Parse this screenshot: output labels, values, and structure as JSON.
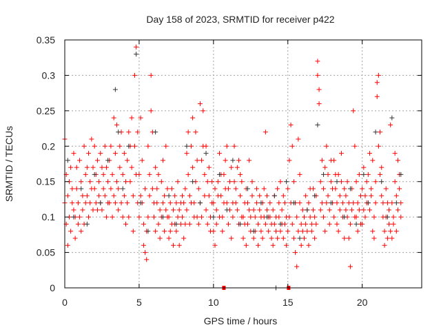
{
  "chart_data": {
    "type": "scatter",
    "title": "Day 158 of 2023, SRMTID for receiver p422",
    "xlabel": "GPS time / hours",
    "ylabel": "SRMTID / TECUs",
    "xlim": [
      0,
      24
    ],
    "ylim": [
      0,
      0.35
    ],
    "xticks": [
      0,
      5,
      10,
      15,
      20
    ],
    "xtick_labels": [
      "0",
      "5",
      "10",
      "15",
      "20"
    ],
    "yticks": [
      0,
      0.05,
      0.1,
      0.15,
      0.2,
      0.25,
      0.3,
      0.35
    ],
    "ytick_labels": [
      "0",
      "0.05",
      "0.1",
      "0.15",
      "0.2",
      "0.25",
      "0.3",
      "0.35"
    ],
    "grid": true,
    "legend": "none",
    "colors": {
      "primary": "#ff0000",
      "secondary": "#333333"
    },
    "series": [
      {
        "name": "red",
        "color": "#ff0000",
        "marker": "plus",
        "x_start": 0,
        "x_step": 0.1,
        "y": [
          [
            0.21,
            0.12
          ],
          [
            0.09,
            0.16
          ],
          [
            0.13,
            0.06
          ],
          [
            0.15,
            0.1
          ],
          [
            0.17,
            0.08
          ],
          [
            0.12,
            0.14
          ],
          [
            0.19,
            0.11
          ],
          [
            0.1,
            0.07
          ],
          [
            0.14,
            0.17
          ],
          [
            0.12,
            0.09
          ],
          [
            0.18,
            0.1
          ],
          [
            0.08,
            0.15
          ],
          [
            0.13,
            0.11
          ],
          [
            0.2,
            0.09
          ],
          [
            0.12,
            0.16
          ],
          [
            0.17,
            0.13
          ],
          [
            0.1,
            0.19
          ],
          [
            0.15,
            0.12
          ],
          [
            0.21,
            0.14
          ],
          [
            0.11,
            0.17
          ],
          [
            0.14,
            0.2
          ],
          [
            0.12,
            0.16
          ],
          [
            0.18,
            0.11
          ],
          [
            0.15,
            0.13
          ],
          [
            0.19,
            0.12
          ],
          [
            0.11,
            0.17
          ],
          [
            0.16,
            0.14
          ],
          [
            0.13,
            0.2
          ],
          [
            0.17,
            0.1
          ],
          [
            0.15,
            0.12
          ],
          [
            0.12,
            0.18
          ],
          [
            0.2,
            0.14
          ],
          [
            0.16,
            0.1
          ],
          [
            0.24,
            0.13
          ],
          [
            0.19,
            0.12
          ],
          [
            0.23,
            0.15
          ],
          [
            0.14,
            0.11
          ],
          [
            0.2,
            0.17
          ],
          [
            0.12,
            0.22
          ],
          [
            0.16,
            0.1
          ],
          [
            0.13,
            0.19
          ],
          [
            0.09,
            0.15
          ],
          [
            0.18,
            0.12
          ],
          [
            0.22,
            0.1
          ],
          [
            0.15,
            0.2
          ],
          [
            0.24,
            0.17
          ],
          [
            0.13,
            0.08
          ],
          [
            0.3,
            0.2
          ],
          [
            0.34,
            0.16
          ],
          [
            0.12,
            0.22
          ],
          [
            0.16,
            0.1
          ],
          [
            0.24,
            0.13
          ],
          [
            0.12,
            0.18
          ],
          [
            0.09,
            0.06
          ],
          [
            0.14,
            0.05
          ],
          [
            0.04,
            0.08
          ],
          [
            0.2,
            0.1
          ],
          [
            0.16,
            0.13
          ],
          [
            0.3,
            0.25
          ],
          [
            0.22,
            0.14
          ],
          [
            0.12,
            0.1
          ],
          [
            0.17,
            0.08
          ],
          [
            0.14,
            0.12
          ],
          [
            0.09,
            0.16
          ],
          [
            0.11,
            0.07
          ],
          [
            0.15,
            0.1
          ],
          [
            0.12,
            0.18
          ],
          [
            0.08,
            0.13
          ],
          [
            0.2,
            0.11
          ],
          [
            0.1,
            0.14
          ],
          [
            0.07,
            0.1
          ],
          [
            0.12,
            0.08
          ],
          [
            0.09,
            0.14
          ],
          [
            0.11,
            0.06
          ],
          [
            0.13,
            0.09
          ],
          [
            0.08,
            0.12
          ],
          [
            0.1,
            0.15
          ],
          [
            0.06,
            0.11
          ],
          [
            0.12,
            0.09
          ],
          [
            0.1,
            0.13
          ],
          [
            0.07,
            0.12
          ],
          [
            0.14,
            0.09
          ],
          [
            0.19,
            0.11
          ],
          [
            0.22,
            0.16
          ],
          [
            0.13,
            0.09
          ],
          [
            0.2,
            0.12
          ],
          [
            0.17,
            0.24
          ],
          [
            0.12,
            0.1
          ],
          [
            0.22,
            0.15
          ],
          [
            0.1,
            0.18
          ],
          [
            0.14,
            0.09
          ],
          [
            0.26,
            0.12
          ],
          [
            0.18,
            0.1
          ],
          [
            0.25,
            0.2
          ],
          [
            0.13,
            0.16
          ],
          [
            0.2,
            0.11
          ],
          [
            0.15,
            0.09
          ],
          [
            0.17,
            0.13
          ],
          [
            0.1,
            0.08
          ],
          [
            0.12,
            0.15
          ],
          [
            0.08,
            0.12
          ],
          [
            0.14,
            0.06
          ],
          [
            0.11,
            0.09
          ],
          [
            0.15,
            0.13
          ],
          [
            0.19,
            0.1
          ],
          [
            0.13,
            0.16
          ],
          [
            0.1,
            0.08
          ],
          [
            0.16,
            0.12
          ],
          [
            0.18,
            0.14
          ],
          [
            0.12,
            0.2
          ],
          [
            0.09,
            0.14
          ],
          [
            0.15,
            0.11
          ],
          [
            0.17,
            0.07
          ],
          [
            0.12,
            0.1
          ],
          [
            0.2,
            0.15
          ],
          [
            0.14,
            0.12
          ],
          [
            0.11,
            0.17
          ],
          [
            0.18,
            0.09
          ],
          [
            0.13,
            0.16
          ],
          [
            0.15,
            0.1
          ],
          [
            0.1,
            0.07
          ],
          [
            0.12,
            0.09
          ],
          [
            0.14,
            0.06
          ],
          [
            0.09,
            0.12
          ],
          [
            0.18,
            0.11
          ],
          [
            0.1,
            0.08
          ],
          [
            0.13,
            0.15
          ],
          [
            0.11,
            0.07
          ],
          [
            0.08,
            0.1
          ],
          [
            0.12,
            0.14
          ],
          [
            0.09,
            0.06
          ],
          [
            0.11,
            0.13
          ],
          [
            0.1,
            0.08
          ],
          [
            0.12,
            0.07
          ],
          [
            0.14,
            0.1
          ],
          [
            0.22,
            0.09
          ],
          [
            0.11,
            0.13
          ],
          [
            0.08,
            0.1
          ],
          [
            0.1,
            0.12
          ],
          [
            0.07,
            0.09
          ],
          [
            0.11,
            0.06
          ],
          [
            0.09,
            0.13
          ],
          [
            0.1,
            0.08
          ],
          [
            0.14,
            0.07
          ],
          [
            0.12,
            0.1
          ],
          [
            0.08,
            0.15
          ],
          [
            0.11,
            0.09
          ],
          [
            0.13,
            0.07
          ],
          [
            0.09,
            0.12
          ],
          [
            0.1,
            0.06
          ],
          [
            0.14,
            0.08
          ],
          [
            0.18,
            0.1
          ],
          [
            0.23,
            0.12
          ],
          [
            0.2,
            0.09
          ],
          [
            0.07,
            0.15
          ],
          [
            0.12,
            0.05
          ],
          [
            0.03,
            0.1
          ],
          [
            0.21,
            0.08
          ],
          [
            0.16,
            0.12
          ],
          [
            0.09,
            0.06
          ],
          [
            0.11,
            0.08
          ],
          [
            0.1,
            0.07
          ],
          [
            0.13,
            0.09
          ],
          [
            0.08,
            0.11
          ],
          [
            0.12,
            0.06
          ],
          [
            0.1,
            0.14
          ],
          [
            0.09,
            0.08
          ],
          [
            0.14,
            0.11
          ],
          [
            0.07,
            0.1
          ],
          [
            0.13,
            0.09
          ],
          [
            0.32,
            0.3
          ],
          [
            0.28,
            0.26
          ],
          [
            0.15,
            0.11
          ],
          [
            0.12,
            0.18
          ],
          [
            0.1,
            0.14
          ],
          [
            0.17,
            0.08
          ],
          [
            0.2,
            0.12
          ],
          [
            0.13,
            0.16
          ],
          [
            0.11,
            0.09
          ],
          [
            0.15,
            0.18
          ],
          [
            0.12,
            0.14
          ],
          [
            0.18,
            0.1
          ],
          [
            0.14,
            0.16
          ],
          [
            0.09,
            0.12
          ],
          [
            0.16,
            0.08
          ],
          [
            0.11,
            0.13
          ],
          [
            0.15,
            0.19
          ],
          [
            0.12,
            0.1
          ],
          [
            0.07,
            0.14
          ],
          [
            0.13,
            0.11
          ],
          [
            0.1,
            0.15
          ],
          [
            0.12,
            0.07
          ],
          [
            0.03,
            0.09
          ],
          [
            0.14,
            0.11
          ],
          [
            0.25,
            0.12
          ],
          [
            0.2,
            0.1
          ],
          [
            0.1,
            0.15
          ],
          [
            0.12,
            0.08
          ],
          [
            0.16,
            0.11
          ],
          [
            0.13,
            0.09
          ],
          [
            0.09,
            0.14
          ],
          [
            0.11,
            0.17
          ],
          [
            0.13,
            0.1
          ],
          [
            0.15,
            0.12
          ],
          [
            0.12,
            0.16
          ],
          [
            0.19,
            0.11
          ],
          [
            0.14,
            0.13
          ],
          [
            0.08,
            0.18
          ],
          [
            0.1,
            0.07
          ],
          [
            0.12,
            0.15
          ],
          [
            0.27,
            0.29
          ],
          [
            0.3,
            0.2
          ],
          [
            0.22,
            0.16
          ],
          [
            0.17,
            0.13
          ],
          [
            0.12,
            0.1
          ],
          [
            0.08,
            0.06
          ],
          [
            0.1,
            0.14
          ],
          [
            0.07,
            0.12
          ],
          [
            0.09,
            0.11
          ],
          [
            0.23,
            0.08
          ],
          [
            0.12,
            0.07
          ],
          [
            0.1,
            0.09
          ],
          [
            0.15,
            0.19
          ],
          [
            0.08,
            0.13
          ],
          [
            0.18,
            0.11
          ],
          [
            0.14,
            0.16
          ],
          [
            0.12,
            0.1
          ]
        ]
      },
      {
        "name": "black",
        "color": "#333333",
        "marker": "plus",
        "points": [
          [
            0.2,
            0.18
          ],
          [
            0.6,
            0.1
          ],
          [
            1.1,
            0.14
          ],
          [
            1.5,
            0.09
          ],
          [
            2.0,
            0.16
          ],
          [
            2.4,
            0.12
          ],
          [
            2.9,
            0.18
          ],
          [
            3.4,
            0.28
          ],
          [
            3.6,
            0.22
          ],
          [
            3.9,
            0.14
          ],
          [
            4.3,
            0.2
          ],
          [
            4.8,
            0.33
          ],
          [
            5.1,
            0.12
          ],
          [
            5.6,
            0.08
          ],
          [
            6.1,
            0.22
          ],
          [
            6.6,
            0.1
          ],
          [
            7.0,
            0.13
          ],
          [
            7.5,
            0.09
          ],
          [
            8.2,
            0.2
          ],
          [
            8.6,
            0.15
          ],
          [
            9.1,
            0.12
          ],
          [
            9.5,
            0.19
          ],
          [
            10.0,
            0.1
          ],
          [
            10.4,
            0.16
          ],
          [
            10.9,
            0.11
          ],
          [
            11.3,
            0.18
          ],
          [
            11.8,
            0.09
          ],
          [
            12.3,
            0.14
          ],
          [
            12.7,
            0.08
          ],
          [
            13.2,
            0.12
          ],
          [
            13.6,
            0.1
          ],
          [
            14.1,
            0.13
          ],
          [
            14.5,
            0.09
          ],
          [
            14.9,
            0.15
          ],
          [
            15.4,
            0.12
          ],
          [
            15.8,
            0.07
          ],
          [
            16.3,
            0.11
          ],
          [
            16.8,
            0.13
          ],
          [
            17.0,
            0.23
          ],
          [
            17.4,
            0.16
          ],
          [
            17.9,
            0.12
          ],
          [
            18.3,
            0.15
          ],
          [
            18.8,
            0.1
          ],
          [
            19.2,
            0.14
          ],
          [
            19.6,
            0.09
          ],
          [
            20.1,
            0.16
          ],
          [
            20.4,
            0.12
          ],
          [
            20.9,
            0.22
          ],
          [
            21.3,
            0.15
          ],
          [
            21.7,
            0.1
          ],
          [
            22.0,
            0.24
          ],
          [
            22.3,
            0.12
          ],
          [
            22.6,
            0.16
          ],
          [
            14.2,
            0.0
          ]
        ]
      },
      {
        "name": "zero-markers",
        "color": "#ff0000",
        "marker": "square",
        "points": [
          [
            10.7,
            0.0
          ],
          [
            15.05,
            0.0
          ]
        ]
      }
    ]
  }
}
